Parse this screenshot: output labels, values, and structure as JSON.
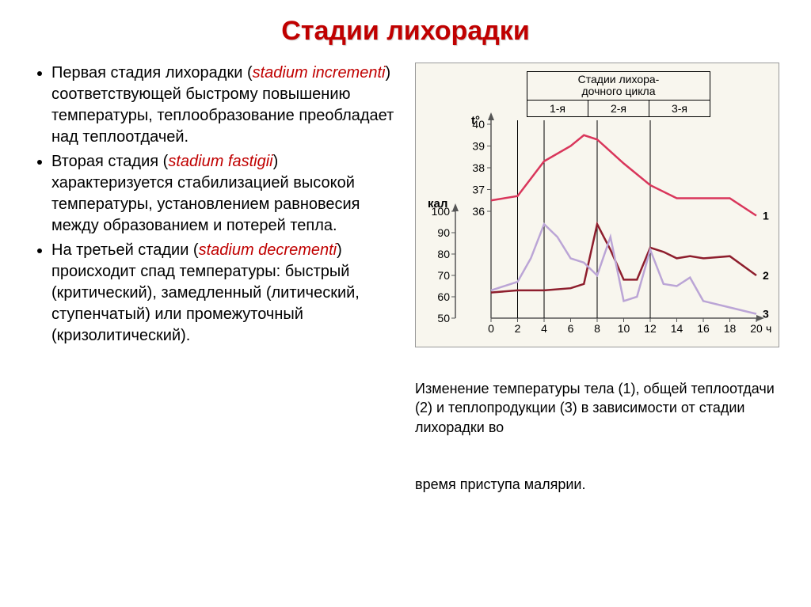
{
  "title": "Стадии лихорадки",
  "bullets": [
    {
      "parts": [
        {
          "text": "Первая стадия лихорадки (",
          "cls": ""
        },
        {
          "text": "stadium incrementi",
          "cls": "red-italic"
        },
        {
          "text": ") соответствующей быстрому повышению температуры, теплообразование преобладает над теплоотдачей.",
          "cls": ""
        }
      ]
    },
    {
      "parts": [
        {
          "text": "Вторая стадия (",
          "cls": ""
        },
        {
          "text": "stadium fastigii",
          "cls": "red-italic"
        },
        {
          "text": ") характеризуется стабилизацией высокой температуры, установлением равновесия между образованием и потерей тепла.",
          "cls": ""
        }
      ]
    },
    {
      "parts": [
        {
          "text": "На третьей стадии (",
          "cls": ""
        },
        {
          "text": "stadium decrementi",
          "cls": "red-italic"
        },
        {
          "text": ") происходит спад температуры: быстрый (критический), замедленный (литический, ступенчатый) или промежуточный (кризолитический).",
          "cls": ""
        }
      ]
    }
  ],
  "chart": {
    "header_title": "Стадии лихора-\nдочного цикла",
    "header_cells": [
      "1-я",
      "2-я",
      "3-я"
    ],
    "left_scale1_title": "t°",
    "left_scale1": [
      "40",
      "39",
      "38",
      "37",
      "36"
    ],
    "left_scale2_title": "кал",
    "left_scale2": [
      "100",
      "90",
      "80",
      "70",
      "60",
      "50"
    ],
    "x_label": "час",
    "x_ticks": [
      "0",
      "2",
      "4",
      "6",
      "8",
      "10",
      "12",
      "14",
      "16",
      "18",
      "20"
    ],
    "colors": {
      "line1": "#d9365b",
      "line2": "#8e1e2d",
      "line3": "#bba5d6",
      "axis": "#555555",
      "bg": "#f8f6ee"
    },
    "series_labels": [
      "1",
      "2",
      "3"
    ],
    "line1_points": [
      [
        0,
        36.5
      ],
      [
        2,
        36.7
      ],
      [
        4,
        38.3
      ],
      [
        6,
        39.0
      ],
      [
        7,
        39.5
      ],
      [
        8,
        39.3
      ],
      [
        10,
        38.2
      ],
      [
        12,
        37.2
      ],
      [
        14,
        36.6
      ],
      [
        16,
        36.6
      ],
      [
        18,
        36.6
      ],
      [
        20,
        35.8
      ]
    ],
    "line2_points": [
      [
        0,
        62
      ],
      [
        2,
        63
      ],
      [
        4,
        63
      ],
      [
        6,
        64
      ],
      [
        7,
        66
      ],
      [
        8,
        94
      ],
      [
        9,
        82
      ],
      [
        10,
        68
      ],
      [
        11,
        68
      ],
      [
        12,
        83
      ],
      [
        13,
        81
      ],
      [
        14,
        78
      ],
      [
        15,
        79
      ],
      [
        16,
        78
      ],
      [
        18,
        79
      ],
      [
        20,
        70
      ]
    ],
    "line3_points": [
      [
        0,
        63
      ],
      [
        2,
        67
      ],
      [
        3,
        78
      ],
      [
        4,
        94
      ],
      [
        5,
        88
      ],
      [
        6,
        78
      ],
      [
        7,
        76
      ],
      [
        8,
        70
      ],
      [
        9,
        88
      ],
      [
        10,
        58
      ],
      [
        11,
        60
      ],
      [
        12,
        82
      ],
      [
        13,
        66
      ],
      [
        14,
        65
      ],
      [
        15,
        69
      ],
      [
        16,
        58
      ],
      [
        18,
        55
      ],
      [
        20,
        52
      ]
    ],
    "stage_divs_x": [
      2,
      4,
      8,
      12
    ]
  },
  "caption1": "Изменение температуры тела (1), общей теплоотдачи (2) и теплопродукции (3) в зависимости от стадии лихорадки во",
  "caption2": "время приступа малярии."
}
